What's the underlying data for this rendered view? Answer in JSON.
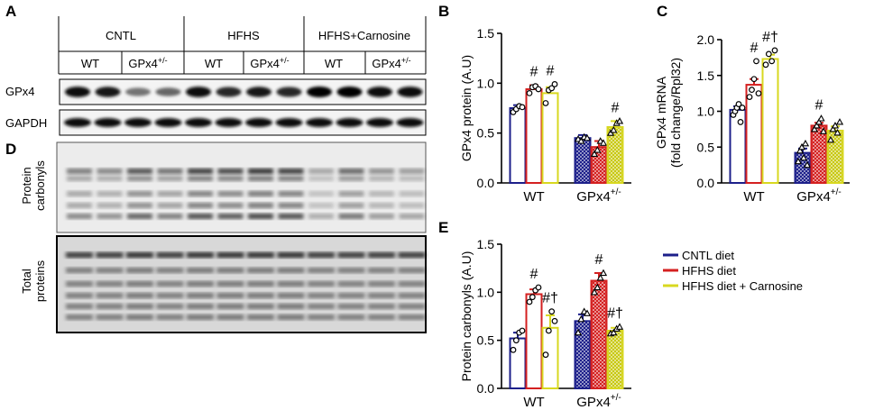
{
  "panel_letters": {
    "A": "A",
    "B": "B",
    "C": "C",
    "D": "D",
    "E": "E"
  },
  "blot": {
    "groups": [
      "CNTL",
      "HFHS",
      "HFHS+Carnosine"
    ],
    "subgroups": [
      "WT",
      "GPx4",
      "WT",
      "GPx4",
      "WT",
      "GPx4"
    ],
    "subgroup_sup": "+/-",
    "row_labels": [
      "GPx4",
      "GAPDH"
    ],
    "d_labels": [
      "Protein carbonyls",
      "Total proteins"
    ],
    "gpx4_band_intensity": [
      0.95,
      0.9,
      0.55,
      0.6,
      0.95,
      0.85,
      0.9,
      0.85,
      1.0,
      1.0,
      0.95,
      0.95
    ],
    "gapdh_band_intensity": [
      0.95,
      0.95,
      0.95,
      0.95,
      0.95,
      0.95,
      0.95,
      0.95,
      0.95,
      0.95,
      0.95,
      0.95
    ],
    "carbonyl_lane_intensity": [
      0.55,
      0.5,
      0.75,
      0.6,
      0.85,
      0.8,
      0.9,
      0.85,
      0.35,
      0.65,
      0.45,
      0.4
    ],
    "total_lane_intensity": [
      0.8,
      0.8,
      0.85,
      0.8,
      0.85,
      0.85,
      0.85,
      0.85,
      0.8,
      0.8,
      0.8,
      0.8
    ]
  },
  "colors": {
    "CNTL diet": "#1c1f8a",
    "HFHS diet": "#d42020",
    "HFHS diet + Carnosine": "#d8d820"
  },
  "legend": [
    "CNTL diet",
    "HFHS diet",
    "HFHS diet + Carnosine"
  ],
  "chart_data": [
    {
      "panel": "B",
      "type": "bar",
      "categories": [
        "WT",
        "GPx4"
      ],
      "category_sup": [
        "",
        "+/-"
      ],
      "series": [
        {
          "name": "CNTL diet",
          "values": [
            0.75,
            0.45
          ],
          "err": [
            0.03,
            0.03
          ],
          "points": [
            [
              0.71,
              0.74,
              0.77,
              0.76
            ],
            [
              0.44,
              0.42,
              0.46,
              0.45
            ]
          ],
          "marker": [
            "circle",
            "triangle"
          ]
        },
        {
          "name": "HFHS diet",
          "values": [
            0.94,
            0.36
          ],
          "err": [
            0.04,
            0.06
          ],
          "points": [
            [
              0.9,
              0.96,
              0.97,
              0.94
            ],
            [
              0.29,
              0.33,
              0.42,
              0.4
            ]
          ],
          "marker": [
            "circle",
            "triangle"
          ]
        },
        {
          "name": "HFHS diet + Carnosine",
          "values": [
            0.9,
            0.56
          ],
          "err": [
            0.06,
            0.06
          ],
          "points": [
            [
              0.8,
              0.93,
              0.95,
              0.99
            ],
            [
              0.5,
              0.53,
              0.6,
              0.62
            ]
          ],
          "marker": [
            "circle",
            "triangle"
          ]
        }
      ],
      "hatched_category": 1,
      "ylabel": "GPx4 protein (A.U)",
      "ylim": [
        0,
        1.5
      ],
      "yticks": [
        0.0,
        0.5,
        1.0,
        1.5
      ],
      "annotations": [
        {
          "cat": 0,
          "series": 1,
          "text": "#"
        },
        {
          "cat": 0,
          "series": 2,
          "text": "#"
        },
        {
          "cat": 1,
          "series": 2,
          "text": "#"
        }
      ]
    },
    {
      "panel": "C",
      "type": "bar",
      "categories": [
        "WT",
        "GPx4"
      ],
      "category_sup": [
        "",
        "+/-"
      ],
      "series": [
        {
          "name": "CNTL diet",
          "values": [
            1.02,
            0.42
          ],
          "err": [
            0.05,
            0.06
          ],
          "points": [
            [
              0.95,
              1.0,
              1.05,
              1.1,
              0.85,
              1.05
            ],
            [
              0.3,
              0.45,
              0.5,
              0.35,
              0.55,
              0.25
            ]
          ],
          "marker": [
            "circle",
            "triangle"
          ]
        },
        {
          "name": "HFHS diet",
          "values": [
            1.37,
            0.8
          ],
          "err": [
            0.08,
            0.04
          ],
          "points": [
            [
              1.2,
              1.3,
              1.45,
              1.7,
              1.25
            ],
            [
              0.75,
              0.8,
              0.85,
              0.9,
              0.72
            ]
          ],
          "marker": [
            "circle",
            "triangle"
          ]
        },
        {
          "name": "HFHS diet + Carnosine",
          "values": [
            1.73,
            0.73
          ],
          "err": [
            0.06,
            0.06
          ],
          "points": [
            [
              1.65,
              1.8,
              1.7,
              1.85
            ],
            [
              0.6,
              0.75,
              0.8,
              0.7,
              0.85
            ]
          ],
          "marker": [
            "circle",
            "triangle"
          ]
        }
      ],
      "hatched_category": 1,
      "ylabel": "GPx4 mRNA",
      "ylabel2": "(fold change/Rpl32)",
      "ylim": [
        0,
        2.0
      ],
      "yticks": [
        0.0,
        0.5,
        1.0,
        1.5,
        2.0
      ],
      "annotations": [
        {
          "cat": 0,
          "series": 1,
          "text": "#"
        },
        {
          "cat": 0,
          "series": 2,
          "text": "#†"
        },
        {
          "cat": 1,
          "series": 1,
          "text": "#"
        }
      ]
    },
    {
      "panel": "E",
      "type": "bar",
      "categories": [
        "WT",
        "GPx4"
      ],
      "category_sup": [
        "",
        "+/-"
      ],
      "series": [
        {
          "name": "CNTL diet",
          "values": [
            0.52,
            0.7
          ],
          "err": [
            0.06,
            0.07
          ],
          "points": [
            [
              0.4,
              0.5,
              0.58,
              0.6
            ],
            [
              0.58,
              0.72,
              0.8,
              0.78
            ]
          ],
          "marker": [
            "circle",
            "triangle"
          ]
        },
        {
          "name": "HFHS diet",
          "values": [
            0.98,
            1.12
          ],
          "err": [
            0.05,
            0.08
          ],
          "points": [
            [
              0.9,
              0.95,
              1.02,
              1.05
            ],
            [
              1.0,
              1.05,
              1.15,
              1.2
            ]
          ],
          "marker": [
            "circle",
            "triangle"
          ]
        },
        {
          "name": "HFHS diet + Carnosine",
          "values": [
            0.63,
            0.6
          ],
          "err": [
            0.13,
            0.03
          ],
          "points": [
            [
              0.35,
              0.6,
              0.8,
              0.7
            ],
            [
              0.57,
              0.58,
              0.62,
              0.64
            ]
          ],
          "marker": [
            "circle",
            "triangle"
          ]
        }
      ],
      "hatched_category": 1,
      "ylabel": "Protein carbonyls (A.U)",
      "ylim": [
        0,
        1.5
      ],
      "yticks": [
        0.0,
        0.5,
        1.0,
        1.5
      ],
      "annotations": [
        {
          "cat": 0,
          "series": 1,
          "text": "#"
        },
        {
          "cat": 0,
          "series": 2,
          "text": "#†"
        },
        {
          "cat": 1,
          "series": 1,
          "text": "#"
        },
        {
          "cat": 1,
          "series": 2,
          "text": "#†"
        }
      ]
    }
  ]
}
